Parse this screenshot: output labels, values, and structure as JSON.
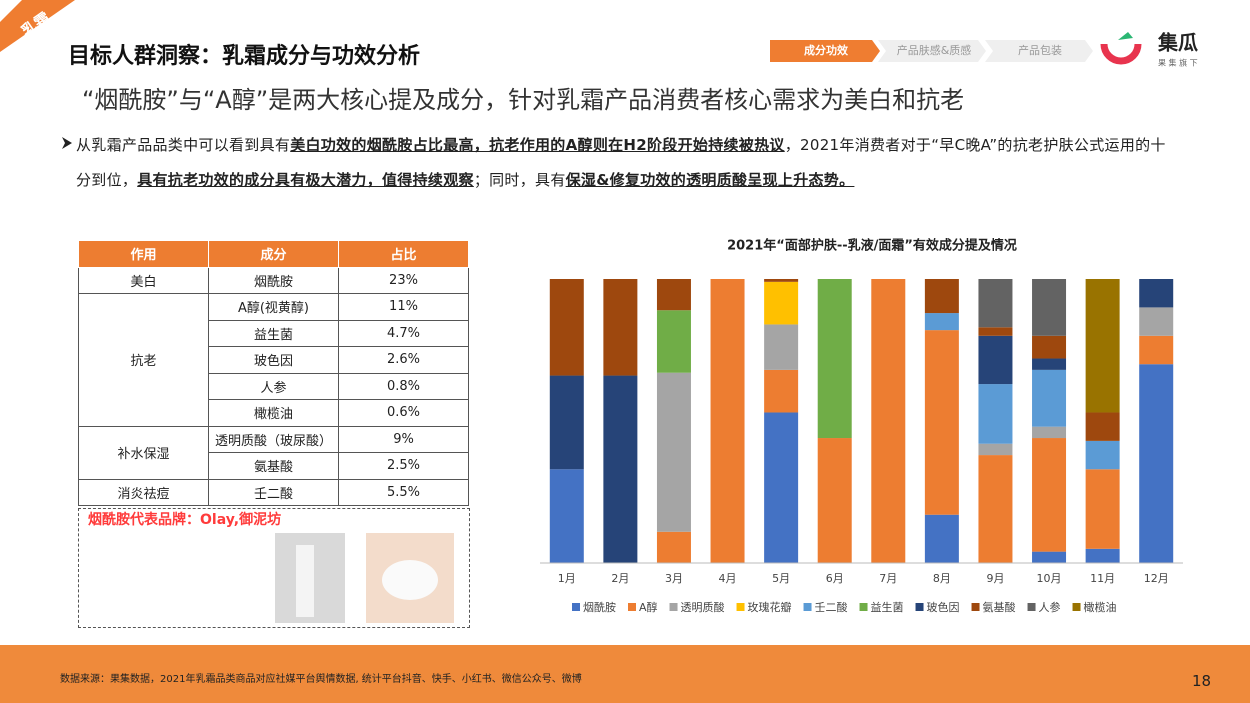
{
  "header": {
    "tag": "乳霜",
    "title": "目标人群洞察：乳霜成分与功效分析",
    "subtitle": "“烟酰胺”与“A醇”是两大核心提及成分，针对乳霜产品消费者核心需求为美白和抗老",
    "tabs": [
      "成分功效",
      "产品肤感&质感",
      "产品包装"
    ],
    "logo": "集瓜",
    "logo_sub": "果 集 旗 下"
  },
  "paragraph": [
    {
      "text": "从乳霜产品品类中可以看到具有",
      "bold": false
    },
    {
      "text": "美白功效的烟酰胺占比最高，抗老作用的A醇则在H2阶段开始持续被热议",
      "bold": true
    },
    {
      "text": "，2021年消费者对于“早C晚A”的抗老护肤公式运用的十分到位，",
      "bold": false
    },
    {
      "text": "具有抗老功效的成分具有极大潜力，值得持续观察",
      "bold": true
    },
    {
      "text": "；同时，具有",
      "bold": false
    },
    {
      "text": "保湿&修复功效的透明质酸呈现上升态势。",
      "bold": true
    }
  ],
  "table": {
    "header": [
      "作用",
      "成分",
      "占比"
    ],
    "groups": [
      {
        "effect": "美白",
        "rows": [
          [
            "烟酰胺",
            "23%"
          ]
        ]
      },
      {
        "effect": "抗老",
        "rows": [
          [
            "A醇(视黄醇)",
            "11%"
          ],
          [
            "益生菌",
            "4.7%"
          ],
          [
            "玻色因",
            "2.6%"
          ],
          [
            "人参",
            "0.8%"
          ],
          [
            "橄榄油",
            "0.6%"
          ]
        ]
      },
      {
        "effect": "补水保湿",
        "rows": [
          [
            "透明质酸（玻尿酸）",
            "9%"
          ],
          [
            "氨基酸",
            "2.5%"
          ]
        ]
      },
      {
        "effect": "消炎祛痘",
        "rows": [
          [
            "壬二酸",
            "5.5%"
          ]
        ]
      }
    ]
  },
  "brand_caption": "烟酰胺代表品牌：Olay,御泥坊",
  "chart_data": {
    "type": "bar",
    "stacked": true,
    "title": "2021年“面部护肤--乳液/面霜”有效成分提及情况",
    "categories": [
      "1月",
      "2月",
      "3月",
      "4月",
      "5月",
      "6月",
      "7月",
      "8月",
      "9月",
      "10月",
      "11月",
      "12月"
    ],
    "ylim": [
      0,
      100
    ],
    "series": [
      {
        "name": "烟酰胺",
        "color": "#4472c4",
        "values": [
          33,
          0,
          0,
          0,
          53,
          0,
          0,
          17,
          0,
          4,
          5,
          70
        ]
      },
      {
        "name": "A醇",
        "color": "#ed7d31",
        "values": [
          0,
          0,
          11,
          100,
          15,
          44,
          100,
          65,
          38,
          40,
          28,
          10
        ]
      },
      {
        "name": "透明质酸",
        "color": "#a5a5a5",
        "values": [
          0,
          0,
          56,
          0,
          16,
          0,
          0,
          0,
          4,
          4,
          0,
          10
        ]
      },
      {
        "name": "玫瑰花瓣",
        "color": "#ffc000",
        "values": [
          0,
          0,
          0,
          0,
          15,
          0,
          0,
          0,
          0,
          0,
          0,
          0
        ]
      },
      {
        "name": "壬二酸",
        "color": "#5b9bd5",
        "values": [
          0,
          0,
          0,
          0,
          0,
          0,
          0,
          6,
          21,
          20,
          10,
          0
        ]
      },
      {
        "name": "益生菌",
        "color": "#70ad47",
        "values": [
          0,
          0,
          22,
          0,
          0,
          56,
          0,
          0,
          0,
          0,
          0,
          0
        ]
      },
      {
        "name": "玻色因",
        "color": "#264478",
        "values": [
          33,
          66,
          0,
          0,
          0,
          0,
          0,
          0,
          17,
          4,
          0,
          10
        ]
      },
      {
        "name": "氨基酸",
        "color": "#9e480e",
        "values": [
          34,
          34,
          11,
          0,
          1,
          0,
          0,
          12,
          3,
          8,
          10,
          0
        ]
      },
      {
        "name": "人参",
        "color": "#636363",
        "values": [
          0,
          0,
          0,
          0,
          0,
          0,
          0,
          0,
          17,
          20,
          0,
          0
        ]
      },
      {
        "name": "橄榄油",
        "color": "#997300",
        "values": [
          0,
          0,
          0,
          0,
          0,
          0,
          0,
          0,
          0,
          0,
          47,
          0
        ]
      }
    ]
  },
  "footer": {
    "source": "数据来源：果集数据，2021年乳霜品类商品对应社媒平台舆情数据, 统计平台抖音、快手、小红书、微信公众号、微博",
    "page": "18"
  }
}
